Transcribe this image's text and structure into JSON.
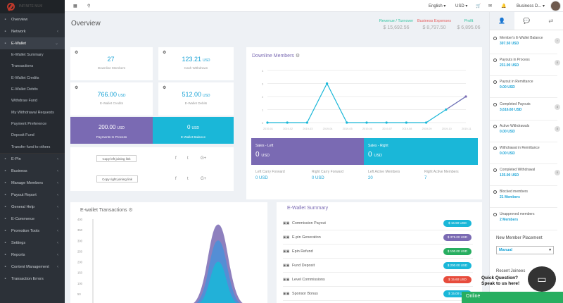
{
  "sidebar": {
    "logo_text": "INFINITE MLM",
    "items_top": [
      {
        "label": "Overview",
        "icon": "monitor-icon",
        "chev": ""
      },
      {
        "label": "Network",
        "icon": "users-icon",
        "chev": "‹"
      },
      {
        "label": "E-Wallet",
        "icon": "wallet-icon",
        "chev": "⌄"
      }
    ],
    "sub_items": [
      "E-Wallet Summary",
      "Transactions",
      "E-Wallet Credits",
      "E-Wallet Debits",
      "Withdraw Fund",
      "My Withdrawal Requests",
      "Payment Preference",
      "Deposit Fund",
      "Transfer fund to others"
    ],
    "items_bottom": [
      {
        "label": "E-Pin",
        "icon": "pin-icon",
        "chev": "‹"
      },
      {
        "label": "Business",
        "icon": "briefcase-icon",
        "chev": "‹"
      },
      {
        "label": "Manage Members",
        "icon": "members-icon",
        "chev": "‹"
      },
      {
        "label": "Payout Report",
        "icon": "report-icon",
        "chev": "‹"
      },
      {
        "label": "General Help",
        "icon": "help-icon",
        "chev": "‹"
      },
      {
        "label": "E-Commerce",
        "icon": "cart-icon",
        "chev": "‹"
      },
      {
        "label": "Promotion Tools",
        "icon": "bullhorn-icon",
        "chev": "‹"
      },
      {
        "label": "Settings",
        "icon": "gear-icon",
        "chev": "‹"
      },
      {
        "label": "Reports",
        "icon": "chart-icon",
        "chev": "‹"
      },
      {
        "label": "Content Management",
        "icon": "content-icon",
        "chev": "‹"
      },
      {
        "label": "Transaction Errors",
        "icon": "error-icon",
        "chev": ""
      }
    ]
  },
  "topbar": {
    "language": "English",
    "currency": "USD",
    "user": "Business D..."
  },
  "page": {
    "title": "Overview"
  },
  "header_stats": [
    {
      "label": "Revenue / Turnover",
      "value": "$ 15,692.56",
      "color": "#2ec4a0"
    },
    {
      "label": "Business Expenses",
      "value": "$ 8,797.50",
      "color": "#e65c5c"
    },
    {
      "label": "Profit",
      "value": "$ 6,895.06",
      "color": "#2ec4a0"
    }
  ],
  "cards": [
    {
      "value": "27",
      "unit": "",
      "label": "Downline Members"
    },
    {
      "value": "123.21",
      "unit": "USD",
      "label": "Cash Withdrawn"
    },
    {
      "value": "766.00",
      "unit": "USD",
      "label": "E-Wallet Credits"
    },
    {
      "value": "512.00",
      "unit": "USD",
      "label": "E-Wallet Debits"
    }
  ],
  "payments_box": {
    "value": "200.00",
    "unit": "USD",
    "label": "Payments In Process"
  },
  "ewallet_box": {
    "value": "0",
    "unit": "USD",
    "label": "E-Wallet Balance"
  },
  "copy": {
    "left": "Copy left joining link",
    "right": "Copy right joining link"
  },
  "social": {
    "facebook": "f",
    "twitter": "t",
    "google": "G+"
  },
  "downline": {
    "title": "Downline Members",
    "sales_left": {
      "label": "Sales - Left",
      "value": "0",
      "unit": "USD"
    },
    "sales_right": {
      "label": "Sales - Right",
      "value": "0",
      "unit": "USD"
    },
    "footer": [
      {
        "label": "Left Carry Forward",
        "value": "0",
        "unit": "USD"
      },
      {
        "label": "Right Carry Forward",
        "value": "0",
        "unit": "USD"
      },
      {
        "label": "Left Active Members",
        "value": "20",
        "unit": ""
      },
      {
        "label": "Right Active Members",
        "value": "7",
        "unit": ""
      }
    ]
  },
  "transactions": {
    "title": "E-wallet Transactions"
  },
  "summary": {
    "title": "E-Wallet Summary",
    "rows": [
      {
        "label": "Commission Payout",
        "amount": "$ 16.90 USD",
        "color": "#1ab7d8"
      },
      {
        "label": "E-pin Generation",
        "amount": "$ 375.00 USD",
        "color": "#7a6ab3"
      },
      {
        "label": "Epin Refund",
        "amount": "$ 100.00 USD",
        "color": "#27ae60"
      },
      {
        "label": "Fund Deposit",
        "amount": "$ 200.00 USD",
        "color": "#1ab7d8"
      },
      {
        "label": "Level Commissions",
        "amount": "$ 15.60 USD",
        "color": "#e74c3c"
      },
      {
        "label": "Sponsor Bonus",
        "amount": "$ 15.00 USD",
        "color": "#1ab7d8"
      }
    ]
  },
  "right": {
    "items": [
      {
        "label": "Member's E-Wallet Balance",
        "value": "307.50 USD",
        "count": "›"
      },
      {
        "label": "Payouts in Process",
        "value": "231.00 USD",
        "count": "0"
      },
      {
        "label": "Payout in Remittance",
        "value": "0.00 USD",
        "count": ""
      },
      {
        "label": "Completed Payouts",
        "value": "3,616.60 USD",
        "count": "0"
      },
      {
        "label": "Active Withdrawals",
        "value": "0.00 USD",
        "count": "0"
      },
      {
        "label": "Withdrawal in Remittance",
        "value": "0.00 USD",
        "count": ""
      },
      {
        "label": "Completed Withdrawal",
        "value": "135.00 USD",
        "count": "0"
      },
      {
        "label": "Blocked members",
        "value": "21 Members",
        "count": ""
      },
      {
        "label": "Unapproved members",
        "value": "2 Members",
        "count": ""
      }
    ],
    "placement_title": "New Member Placement",
    "placement_value": "Manual",
    "recent_title": "Recent Joinees"
  },
  "chat": {
    "question": "Quick Question? Speak to us here!",
    "status": "Online"
  },
  "chart_data": [
    {
      "type": "line",
      "title": "Downline Members",
      "x": [
        "2019-01",
        "2019-02",
        "2019-03",
        "2019-04",
        "2019-05",
        "2019-06",
        "2019-07",
        "2019-08",
        "2019-09",
        "2019-10",
        "2019-11"
      ],
      "ylim": [
        0,
        4
      ],
      "y_ticks": [
        "0",
        "1",
        "2",
        "3",
        "4"
      ],
      "series": [
        {
          "values": [
            0,
            0,
            0,
            3,
            0,
            0,
            0,
            0,
            0,
            1,
            2
          ]
        }
      ]
    },
    {
      "type": "area",
      "title": "E-wallet Transactions",
      "ylim": [
        0,
        400
      ],
      "y_ticks": [
        "0",
        "50",
        "100",
        "150",
        "200",
        "250",
        "300",
        "350",
        "400"
      ],
      "series": [
        {
          "peak": 375,
          "color": "#7a6ab3"
        },
        {
          "peak": 300,
          "color": "#4a90d9"
        },
        {
          "peak": 200,
          "color": "#1ab7d8"
        }
      ]
    }
  ]
}
